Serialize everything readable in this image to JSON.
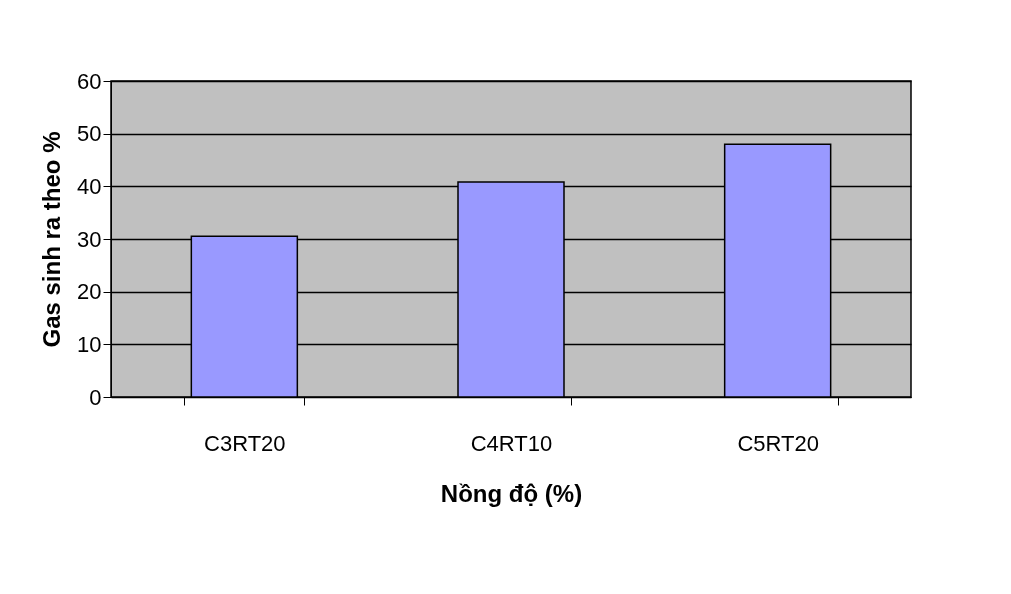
{
  "chart_data": {
    "type": "bar",
    "xlabel": "Nồng độ (%)",
    "ylabel": "Gas sinh ra theo %",
    "categories": [
      "C3RT20",
      "C4RT10",
      "C5RT20"
    ],
    "values": [
      30.5,
      40.8,
      48.0
    ],
    "color": "#9999ff",
    "ylim": [
      0,
      60
    ],
    "yticks": [
      0,
      10,
      20,
      30,
      40,
      50,
      60
    ],
    "grid": "y"
  }
}
